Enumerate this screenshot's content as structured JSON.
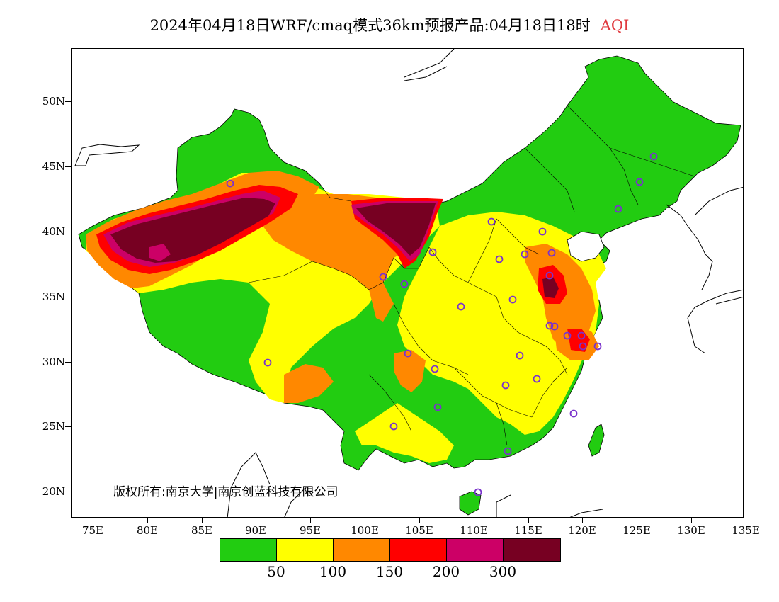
{
  "title": {
    "main": "2024年04月18日WRF/cmaq模式36km预报产品:04月18日18时",
    "variable": "AQI",
    "variable_color": "#e0393e"
  },
  "axes": {
    "lat_labels": [
      "50N",
      "45N",
      "40N",
      "35N",
      "30N",
      "25N",
      "20N"
    ],
    "lon_labels": [
      "75E",
      "80E",
      "85E",
      "90E",
      "95E",
      "100E",
      "105E",
      "110E",
      "115E",
      "120E",
      "125E",
      "130E",
      "135E"
    ]
  },
  "credit": "版权所有:南京大学|南京创蓝科技有限公司",
  "legend": {
    "colors": [
      "#22cc11",
      "#ffff00",
      "#ff8800",
      "#ff0000",
      "#cc0066",
      "#770022"
    ],
    "labels": [
      "50",
      "100",
      "150",
      "200",
      "300"
    ]
  },
  "stations": {
    "marker_color": "#7a33cc"
  }
}
